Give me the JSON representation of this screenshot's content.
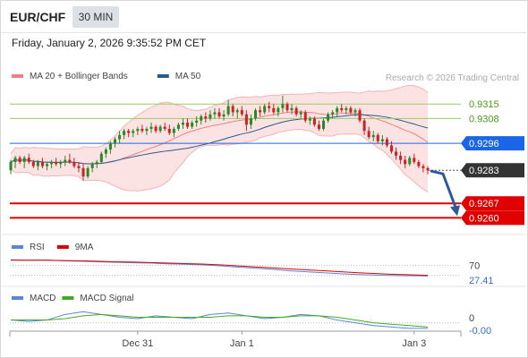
{
  "header": {
    "symbol": "EUR/CHF",
    "timeframe": "30 MIN",
    "timestamp": "Friday, January 2, 2026 9:35:52 PM CET"
  },
  "colors": {
    "bollinger": "#f08080",
    "ma50": "#2c5a8c",
    "resistance": "#9ccc65",
    "pivot": "#1a66e6",
    "support": "#e00000",
    "current": "#333333",
    "rsi": "#5a86d6",
    "rsi_ma": "#e00000",
    "macd": "#5a86d6",
    "macd_signal": "#44aa22",
    "candle_up": "#2a8a2a",
    "candle_down": "#cc2222",
    "arrow": "#2c5a9c"
  },
  "legend": {
    "price": [
      {
        "label": "MA 20 + Bollinger Bands",
        "color": "#f08080"
      },
      {
        "label": "MA 50",
        "color": "#2c5a8c"
      }
    ],
    "rsi": [
      {
        "label": "RSI",
        "color": "#5a86d6"
      },
      {
        "label": "9MA",
        "color": "#e00000"
      }
    ],
    "macd": [
      {
        "label": "MACD",
        "color": "#5a86d6"
      },
      {
        "label": "MACD Signal",
        "color": "#44aa22"
      }
    ]
  },
  "watermark": "Research © 2026 Trading Central",
  "chart_data": [
    {
      "type": "candlestick",
      "name": "price",
      "levels": [
        {
          "label": "0.9315",
          "value": 0.9315,
          "kind": "resistance"
        },
        {
          "label": "0.9308",
          "value": 0.9308,
          "kind": "resistance"
        },
        {
          "label": "0.9296",
          "value": 0.9296,
          "kind": "pivot"
        },
        {
          "label": "0.9283",
          "value": 0.9283,
          "kind": "current"
        },
        {
          "label": "0.9267",
          "value": 0.9267,
          "kind": "support"
        },
        {
          "label": "0.9260",
          "value": 0.926,
          "kind": "support"
        }
      ],
      "ohlc": [
        [
          0.9283,
          0.9288,
          0.9281,
          0.9287
        ],
        [
          0.9287,
          0.929,
          0.9284,
          0.9289
        ],
        [
          0.9289,
          0.929,
          0.9286,
          0.9287
        ],
        [
          0.9287,
          0.929,
          0.9284,
          0.9289
        ],
        [
          0.9289,
          0.9291,
          0.9286,
          0.9287
        ],
        [
          0.9287,
          0.9288,
          0.9284,
          0.9285
        ],
        [
          0.9285,
          0.9288,
          0.9283,
          0.9287
        ],
        [
          0.9287,
          0.9289,
          0.9284,
          0.9285
        ],
        [
          0.9285,
          0.9287,
          0.9283,
          0.9286
        ],
        [
          0.9286,
          0.9288,
          0.9284,
          0.9287
        ],
        [
          0.9287,
          0.9289,
          0.9285,
          0.9286
        ],
        [
          0.9286,
          0.9288,
          0.9284,
          0.9287
        ],
        [
          0.9287,
          0.929,
          0.9285,
          0.9288
        ],
        [
          0.9288,
          0.9291,
          0.9286,
          0.9287
        ],
        [
          0.9287,
          0.9289,
          0.9284,
          0.9285
        ],
        [
          0.9285,
          0.9287,
          0.9282,
          0.9284
        ],
        [
          0.9284,
          0.9286,
          0.9278,
          0.928
        ],
        [
          0.928,
          0.9285,
          0.9279,
          0.9284
        ],
        [
          0.9284,
          0.9287,
          0.9282,
          0.9286
        ],
        [
          0.9286,
          0.9288,
          0.9284,
          0.9287
        ],
        [
          0.9287,
          0.9292,
          0.9286,
          0.9291
        ],
        [
          0.9291,
          0.9294,
          0.9289,
          0.9293
        ],
        [
          0.9293,
          0.9297,
          0.9291,
          0.9296
        ],
        [
          0.9296,
          0.9299,
          0.9294,
          0.9298
        ],
        [
          0.9298,
          0.9302,
          0.9296,
          0.93
        ],
        [
          0.93,
          0.9303,
          0.9298,
          0.9302
        ],
        [
          0.9302,
          0.9303,
          0.9299,
          0.9301
        ],
        [
          0.9301,
          0.9303,
          0.9299,
          0.9302
        ],
        [
          0.9302,
          0.9304,
          0.93,
          0.9303
        ],
        [
          0.9303,
          0.9305,
          0.9301,
          0.9302
        ],
        [
          0.9302,
          0.9304,
          0.93,
          0.9303
        ],
        [
          0.9303,
          0.9306,
          0.9301,
          0.9304
        ],
        [
          0.9304,
          0.9305,
          0.9301,
          0.9302
        ],
        [
          0.9302,
          0.9305,
          0.9301,
          0.9304
        ],
        [
          0.9304,
          0.9306,
          0.9302,
          0.9303
        ],
        [
          0.9303,
          0.9305,
          0.93,
          0.9301
        ],
        [
          0.9301,
          0.9304,
          0.9299,
          0.9303
        ],
        [
          0.9303,
          0.9306,
          0.9302,
          0.9305
        ],
        [
          0.9305,
          0.9308,
          0.9303,
          0.9306
        ],
        [
          0.9306,
          0.9308,
          0.9303,
          0.9304
        ],
        [
          0.9304,
          0.9307,
          0.9303,
          0.9306
        ],
        [
          0.9306,
          0.9309,
          0.9304,
          0.9307
        ],
        [
          0.9307,
          0.931,
          0.9305,
          0.9309
        ],
        [
          0.9309,
          0.9311,
          0.9306,
          0.9308
        ],
        [
          0.9308,
          0.9312,
          0.9307,
          0.931
        ],
        [
          0.931,
          0.9313,
          0.9308,
          0.9311
        ],
        [
          0.9311,
          0.9313,
          0.9308,
          0.9309
        ],
        [
          0.9309,
          0.9312,
          0.9307,
          0.931
        ],
        [
          0.931,
          0.9317,
          0.9309,
          0.9314
        ],
        [
          0.9314,
          0.9315,
          0.9309,
          0.9311
        ],
        [
          0.9311,
          0.9313,
          0.9308,
          0.9312
        ],
        [
          0.9312,
          0.9314,
          0.9309,
          0.931
        ],
        [
          0.931,
          0.9312,
          0.9302,
          0.9305
        ],
        [
          0.9305,
          0.931,
          0.9303,
          0.9308
        ],
        [
          0.9308,
          0.9313,
          0.9307,
          0.9312
        ],
        [
          0.9312,
          0.9314,
          0.9309,
          0.9311
        ],
        [
          0.9311,
          0.9315,
          0.931,
          0.9314
        ],
        [
          0.9314,
          0.9316,
          0.9311,
          0.9313
        ],
        [
          0.9313,
          0.9315,
          0.931,
          0.9311
        ],
        [
          0.9311,
          0.9314,
          0.9309,
          0.9313
        ],
        [
          0.9313,
          0.9319,
          0.9311,
          0.9315
        ],
        [
          0.9315,
          0.9316,
          0.9311,
          0.9312
        ],
        [
          0.9312,
          0.9315,
          0.931,
          0.9313
        ],
        [
          0.9313,
          0.9314,
          0.9309,
          0.931
        ],
        [
          0.931,
          0.9312,
          0.9308,
          0.9311
        ],
        [
          0.9311,
          0.9312,
          0.9306,
          0.9307
        ],
        [
          0.9307,
          0.9309,
          0.9305,
          0.9308
        ],
        [
          0.9308,
          0.9309,
          0.9304,
          0.9305
        ],
        [
          0.9305,
          0.9307,
          0.9302,
          0.9303
        ],
        [
          0.9303,
          0.9308,
          0.9302,
          0.9307
        ],
        [
          0.9307,
          0.9311,
          0.9306,
          0.931
        ],
        [
          0.931,
          0.9312,
          0.9308,
          0.9311
        ],
        [
          0.9311,
          0.9314,
          0.9309,
          0.9313
        ],
        [
          0.9313,
          0.9315,
          0.9311,
          0.9312
        ],
        [
          0.9312,
          0.9314,
          0.931,
          0.9313
        ],
        [
          0.9313,
          0.9314,
          0.931,
          0.9311
        ],
        [
          0.9311,
          0.9313,
          0.9309,
          0.9312
        ],
        [
          0.9312,
          0.9313,
          0.9306,
          0.9307
        ],
        [
          0.9307,
          0.9308,
          0.93,
          0.9302
        ],
        [
          0.9302,
          0.9304,
          0.9298,
          0.9299
        ],
        [
          0.9299,
          0.9302,
          0.9297,
          0.93
        ],
        [
          0.93,
          0.9301,
          0.9296,
          0.9297
        ],
        [
          0.9297,
          0.93,
          0.9295,
          0.9298
        ],
        [
          0.9298,
          0.9299,
          0.9294,
          0.9295
        ],
        [
          0.9295,
          0.9297,
          0.9291,
          0.9292
        ],
        [
          0.9292,
          0.9294,
          0.9288,
          0.929
        ],
        [
          0.929,
          0.9292,
          0.9286,
          0.9288
        ],
        [
          0.9288,
          0.929,
          0.9284,
          0.9286
        ],
        [
          0.9286,
          0.929,
          0.9285,
          0.9289
        ],
        [
          0.9289,
          0.9291,
          0.9286,
          0.9287
        ],
        [
          0.9287,
          0.9288,
          0.9284,
          0.9285
        ],
        [
          0.9285,
          0.9286,
          0.9282,
          0.9284
        ],
        [
          0.9284,
          0.9285,
          0.9281,
          0.9283
        ]
      ]
    },
    {
      "type": "line",
      "name": "rsi",
      "levels": [
        {
          "label": "70",
          "value": 70
        }
      ],
      "current_label": "27.41",
      "ylim": [
        0,
        100
      ],
      "series": [
        {
          "name": "RSI",
          "values": [
            92,
            90,
            91,
            88,
            86,
            84,
            82,
            80,
            79,
            76,
            74,
            72,
            68,
            63,
            59,
            54,
            48,
            44,
            40,
            36,
            33,
            31,
            29,
            28,
            27.41
          ]
        },
        {
          "name": "9MA",
          "values": [
            90,
            90,
            90,
            89,
            88,
            86,
            84,
            83,
            81,
            79,
            77,
            75,
            72,
            68,
            64,
            60,
            56,
            52,
            48,
            44,
            40,
            37,
            34,
            32,
            30
          ]
        }
      ]
    },
    {
      "type": "line",
      "name": "macd",
      "levels": [
        {
          "label": "0",
          "value": 0
        }
      ],
      "current_label": "-0.00",
      "ylim": [
        -0.0006,
        0.0012
      ],
      "series": [
        {
          "name": "MACD",
          "values": [
            0.0002,
            0.0001,
            0.0002,
            0.0006,
            0.0008,
            0.0006,
            0.0004,
            0.0003,
            0.0005,
            0.0004,
            0.0003,
            0.0006,
            0.0007,
            0.0005,
            0.0003,
            0.0004,
            0.0006,
            0.0005,
            0.0002,
            0.0,
            -0.0002,
            -0.0003,
            -0.0004,
            -0.0004
          ]
        },
        {
          "name": "MACD Signal",
          "values": [
            0.0002,
            0.0002,
            0.0002,
            0.0003,
            0.0005,
            0.0006,
            0.0005,
            0.0004,
            0.0004,
            0.0004,
            0.0004,
            0.0004,
            0.0005,
            0.0005,
            0.0004,
            0.0004,
            0.0005,
            0.0005,
            0.0004,
            0.0002,
            0.0,
            -0.0001,
            -0.0002,
            -0.0003
          ]
        }
      ]
    }
  ],
  "x_axis": {
    "ticks": [
      {
        "label": "Dec 31",
        "index": 28
      },
      {
        "label": "Jan 1",
        "index": 51
      },
      {
        "label": "Jan 3",
        "index": 89
      }
    ]
  }
}
